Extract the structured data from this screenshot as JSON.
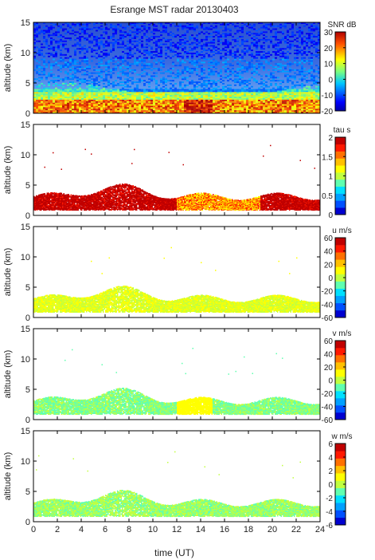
{
  "figure": {
    "title": "Esrange MST radar 20130403",
    "xlabel": "time (UT)"
  },
  "chart_data": [
    {
      "type": "heatmap",
      "panel": "snr",
      "title": "Esrange MST radar 20130403",
      "ylabel": "altitude (km)",
      "xlim": [
        0,
        24
      ],
      "ylim": [
        0,
        15
      ],
      "x_ticks": [
        "0",
        "2",
        "4",
        "6",
        "8",
        "10",
        "12",
        "14",
        "16",
        "18",
        "20",
        "22",
        "24"
      ],
      "y_ticks": [
        "0",
        "5",
        "10",
        "15"
      ],
      "colorbar": {
        "label": "SNR dB",
        "range": [
          -20,
          30
        ],
        "ticks": [
          "30",
          "20",
          "10",
          "0",
          "-10",
          "-20"
        ],
        "colormap": "jet-continuous"
      },
      "description_values": {
        "background_upper": -15,
        "strong_layer_altitude_km": [
          0.8,
          2.5
        ],
        "strong_layer_snr_db": 25
      }
    },
    {
      "type": "heatmap",
      "panel": "tau",
      "ylabel": "altitude (km)",
      "xlim": [
        0,
        24
      ],
      "ylim": [
        0,
        15
      ],
      "x_ticks": [
        "0",
        "2",
        "4",
        "6",
        "8",
        "10",
        "12",
        "14",
        "16",
        "18",
        "20",
        "22",
        "24"
      ],
      "y_ticks": [
        "0",
        "5",
        "10",
        "15"
      ],
      "colorbar": {
        "label": "tau s",
        "range": [
          0,
          2
        ],
        "ticks": [
          "2",
          "1.5",
          "1",
          "0.5",
          "0"
        ],
        "colormap": "jet-discrete"
      },
      "description_values": {
        "main_layer_altitude_km": [
          1,
          5
        ],
        "typical_tau_s": 2.0
      }
    },
    {
      "type": "heatmap",
      "panel": "u",
      "ylabel": "altitude (km)",
      "xlim": [
        0,
        24
      ],
      "ylim": [
        0,
        15
      ],
      "x_ticks": [
        "0",
        "2",
        "4",
        "6",
        "8",
        "10",
        "12",
        "14",
        "16",
        "18",
        "20",
        "22",
        "24"
      ],
      "y_ticks": [
        "0",
        "5",
        "10",
        "15"
      ],
      "colorbar": {
        "label": "u m/s",
        "range": [
          -60,
          60
        ],
        "ticks": [
          "60",
          "40",
          "20",
          "0",
          "-20",
          "-40",
          "-60"
        ],
        "colormap": "jet-discrete"
      },
      "description_values": {
        "main_layer_altitude_km": [
          1,
          5
        ],
        "typical_u_ms": 15
      }
    },
    {
      "type": "heatmap",
      "panel": "v",
      "ylabel": "altitude (km)",
      "xlim": [
        0,
        24
      ],
      "ylim": [
        0,
        15
      ],
      "x_ticks": [
        "0",
        "2",
        "4",
        "6",
        "8",
        "10",
        "12",
        "14",
        "16",
        "18",
        "20",
        "22",
        "24"
      ],
      "y_ticks": [
        "0",
        "5",
        "10",
        "15"
      ],
      "colorbar": {
        "label": "v m/s",
        "range": [
          -60,
          60
        ],
        "ticks": [
          "60",
          "40",
          "20",
          "0",
          "-20",
          "-40",
          "-60"
        ],
        "colormap": "jet-discrete"
      },
      "description_values": {
        "main_layer_altitude_km": [
          1,
          5
        ],
        "typical_v_ms": -5
      }
    },
    {
      "type": "heatmap",
      "panel": "w",
      "ylabel": "altitude (km)",
      "xlim": [
        0,
        24
      ],
      "ylim": [
        0,
        15
      ],
      "x_ticks": [
        "0",
        "2",
        "4",
        "6",
        "8",
        "10",
        "12",
        "14",
        "16",
        "18",
        "20",
        "22",
        "24"
      ],
      "y_ticks": [
        "0",
        "5",
        "10",
        "15"
      ],
      "colorbar": {
        "label": "w m/s",
        "range": [
          -6,
          6
        ],
        "ticks": [
          "6",
          "4",
          "2",
          "0",
          "-2",
          "-4",
          "-6"
        ],
        "colormap": "jet-discrete"
      },
      "description_values": {
        "main_layer_altitude_km": [
          1,
          5
        ],
        "typical_w_ms": 0.5
      }
    }
  ]
}
